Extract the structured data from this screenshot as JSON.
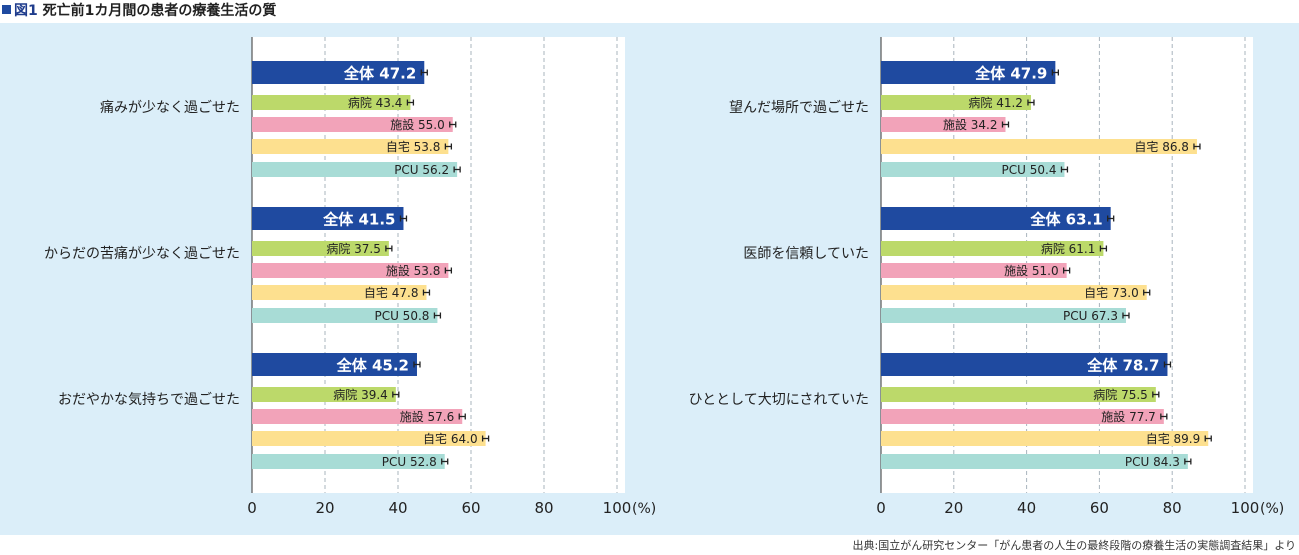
{
  "figure": {
    "label": "図1",
    "title": "死亡前1カ月間の患者の療養生活の質",
    "source": "出典:国立がん研究センター「がん患者の人生の最終段階の療養生活の実態調査結果」より"
  },
  "colors": {
    "panel_bg": "#dbeef9",
    "全体": "#1f4aa0",
    "病院": "#bcd96a",
    "施設": "#f2a3b9",
    "自宅": "#fde08f",
    "PCU": "#a8dcd6"
  },
  "chart_data": [
    {
      "type": "bar",
      "orientation": "horizontal",
      "xlim": [
        0,
        100
      ],
      "x_ticks": [
        "0",
        "20",
        "40",
        "60",
        "80",
        "100"
      ],
      "unit": "(%)",
      "grid": "vertical dashed",
      "series": [
        "全体",
        "病院",
        "施設",
        "自宅",
        "PCU"
      ],
      "groups": [
        {
          "category": "痛みが少なく過ごせた",
          "values": [
            47.2,
            43.4,
            55.0,
            53.8,
            56.2
          ]
        },
        {
          "category": "からだの苦痛が少なく過ごせた",
          "values": [
            41.5,
            37.5,
            53.8,
            47.8,
            50.8
          ]
        },
        {
          "category": "おだやかな気持ちで過ごせた",
          "values": [
            45.2,
            39.4,
            57.6,
            64.0,
            52.8
          ]
        }
      ]
    },
    {
      "type": "bar",
      "orientation": "horizontal",
      "xlim": [
        0,
        100
      ],
      "x_ticks": [
        "0",
        "20",
        "40",
        "60",
        "80",
        "100"
      ],
      "unit": "(%)",
      "grid": "vertical dashed",
      "series": [
        "全体",
        "病院",
        "施設",
        "自宅",
        "PCU"
      ],
      "groups": [
        {
          "category": "望んだ場所で過ごせた",
          "values": [
            47.9,
            41.2,
            34.2,
            86.8,
            50.4
          ]
        },
        {
          "category": "医師を信頼していた",
          "values": [
            63.1,
            61.1,
            51.0,
            73.0,
            67.3
          ]
        },
        {
          "category": "ひととして大切にされていた",
          "values": [
            78.7,
            75.5,
            77.7,
            89.9,
            84.3
          ]
        }
      ]
    }
  ]
}
